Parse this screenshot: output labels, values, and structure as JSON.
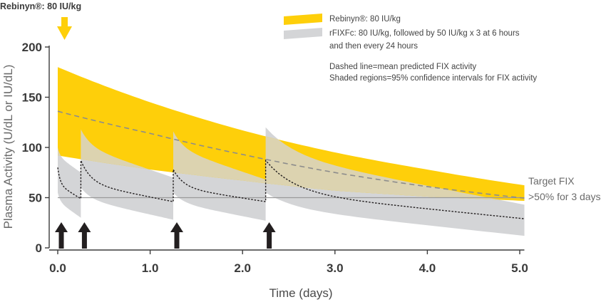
{
  "chart_data": {
    "type": "area",
    "title": "",
    "xlabel": "Time (days)",
    "ylabel": "Plasma Activity (U/dL or IU/dL)",
    "xlim": [
      0,
      5.05
    ],
    "ylim": [
      0,
      200
    ],
    "x_ticks": [
      0.0,
      1.0,
      2.0,
      3.0,
      4.0,
      5.0
    ],
    "x_tick_labels": [
      "0.0",
      "1.0",
      "2.0",
      "3.0",
      "4.0",
      "5.0"
    ],
    "y_ticks": [
      0,
      50,
      100,
      150,
      200
    ],
    "y_tick_labels": [
      "0",
      "50",
      "100",
      "150",
      "200"
    ],
    "grid": false,
    "legend_position": "top-right",
    "dose_label": "Rebinyn®: 80 IU/kg",
    "colors": {
      "rebinyn_band": "#fecf0a",
      "rfixfc_band": "#d4d5d7",
      "overlap": "#dcd3b0",
      "mean_line": "#8c8c8c",
      "target_line": "#9a9a9a",
      "dose_arrow": "#231f20",
      "axis": "#3c3c3c"
    },
    "series": [
      {
        "name": "Rebinyn®: 80 IU/kg",
        "kind": "band-with-mean",
        "mean": {
          "x": [
            0.0,
            1.0,
            2.0,
            3.0,
            4.0,
            5.0
          ],
          "y": [
            136,
            114,
            93,
            75,
            61,
            50
          ]
        },
        "upper": {
          "x": [
            0.0,
            1.0,
            2.0,
            3.0,
            4.0,
            5.0
          ],
          "y": [
            180,
            145,
            117,
            95,
            78,
            63
          ]
        },
        "lower": {
          "x": [
            0.0,
            1.0,
            2.0,
            3.0,
            4.0,
            5.0
          ],
          "y": [
            92,
            78,
            67,
            57,
            51,
            47
          ]
        }
      },
      {
        "name": "rFIXFc: 80 IU/kg, followed by 50 IU/kg x 3 at 6 hours and then every 24 hours",
        "kind": "band-with-mean",
        "doses_at_days": [
          0.0,
          0.25,
          1.25,
          2.25
        ],
        "mean_peaks": [
          80,
          87,
          78,
          87
        ],
        "mean_troughs": [
          49,
          46,
          46,
          44
        ],
        "mean_end": 29,
        "upper_peaks": [
          100,
          118,
          116,
          120
        ],
        "upper_troughs": [
          75,
          70,
          68,
          65
        ],
        "upper_end": 43,
        "lower_peaks": [
          55,
          60,
          55,
          55
        ],
        "lower_troughs": [
          30,
          28,
          27,
          26
        ],
        "lower_end": 12
      }
    ],
    "target": {
      "y": 50,
      "label_line1": "Target FIX",
      "label_line2": ">50% for 3 days"
    },
    "notes": [
      "Dashed line=mean predicted FIX activity",
      "Shaded regions=95% confidence intervals for FIX activity"
    ]
  }
}
